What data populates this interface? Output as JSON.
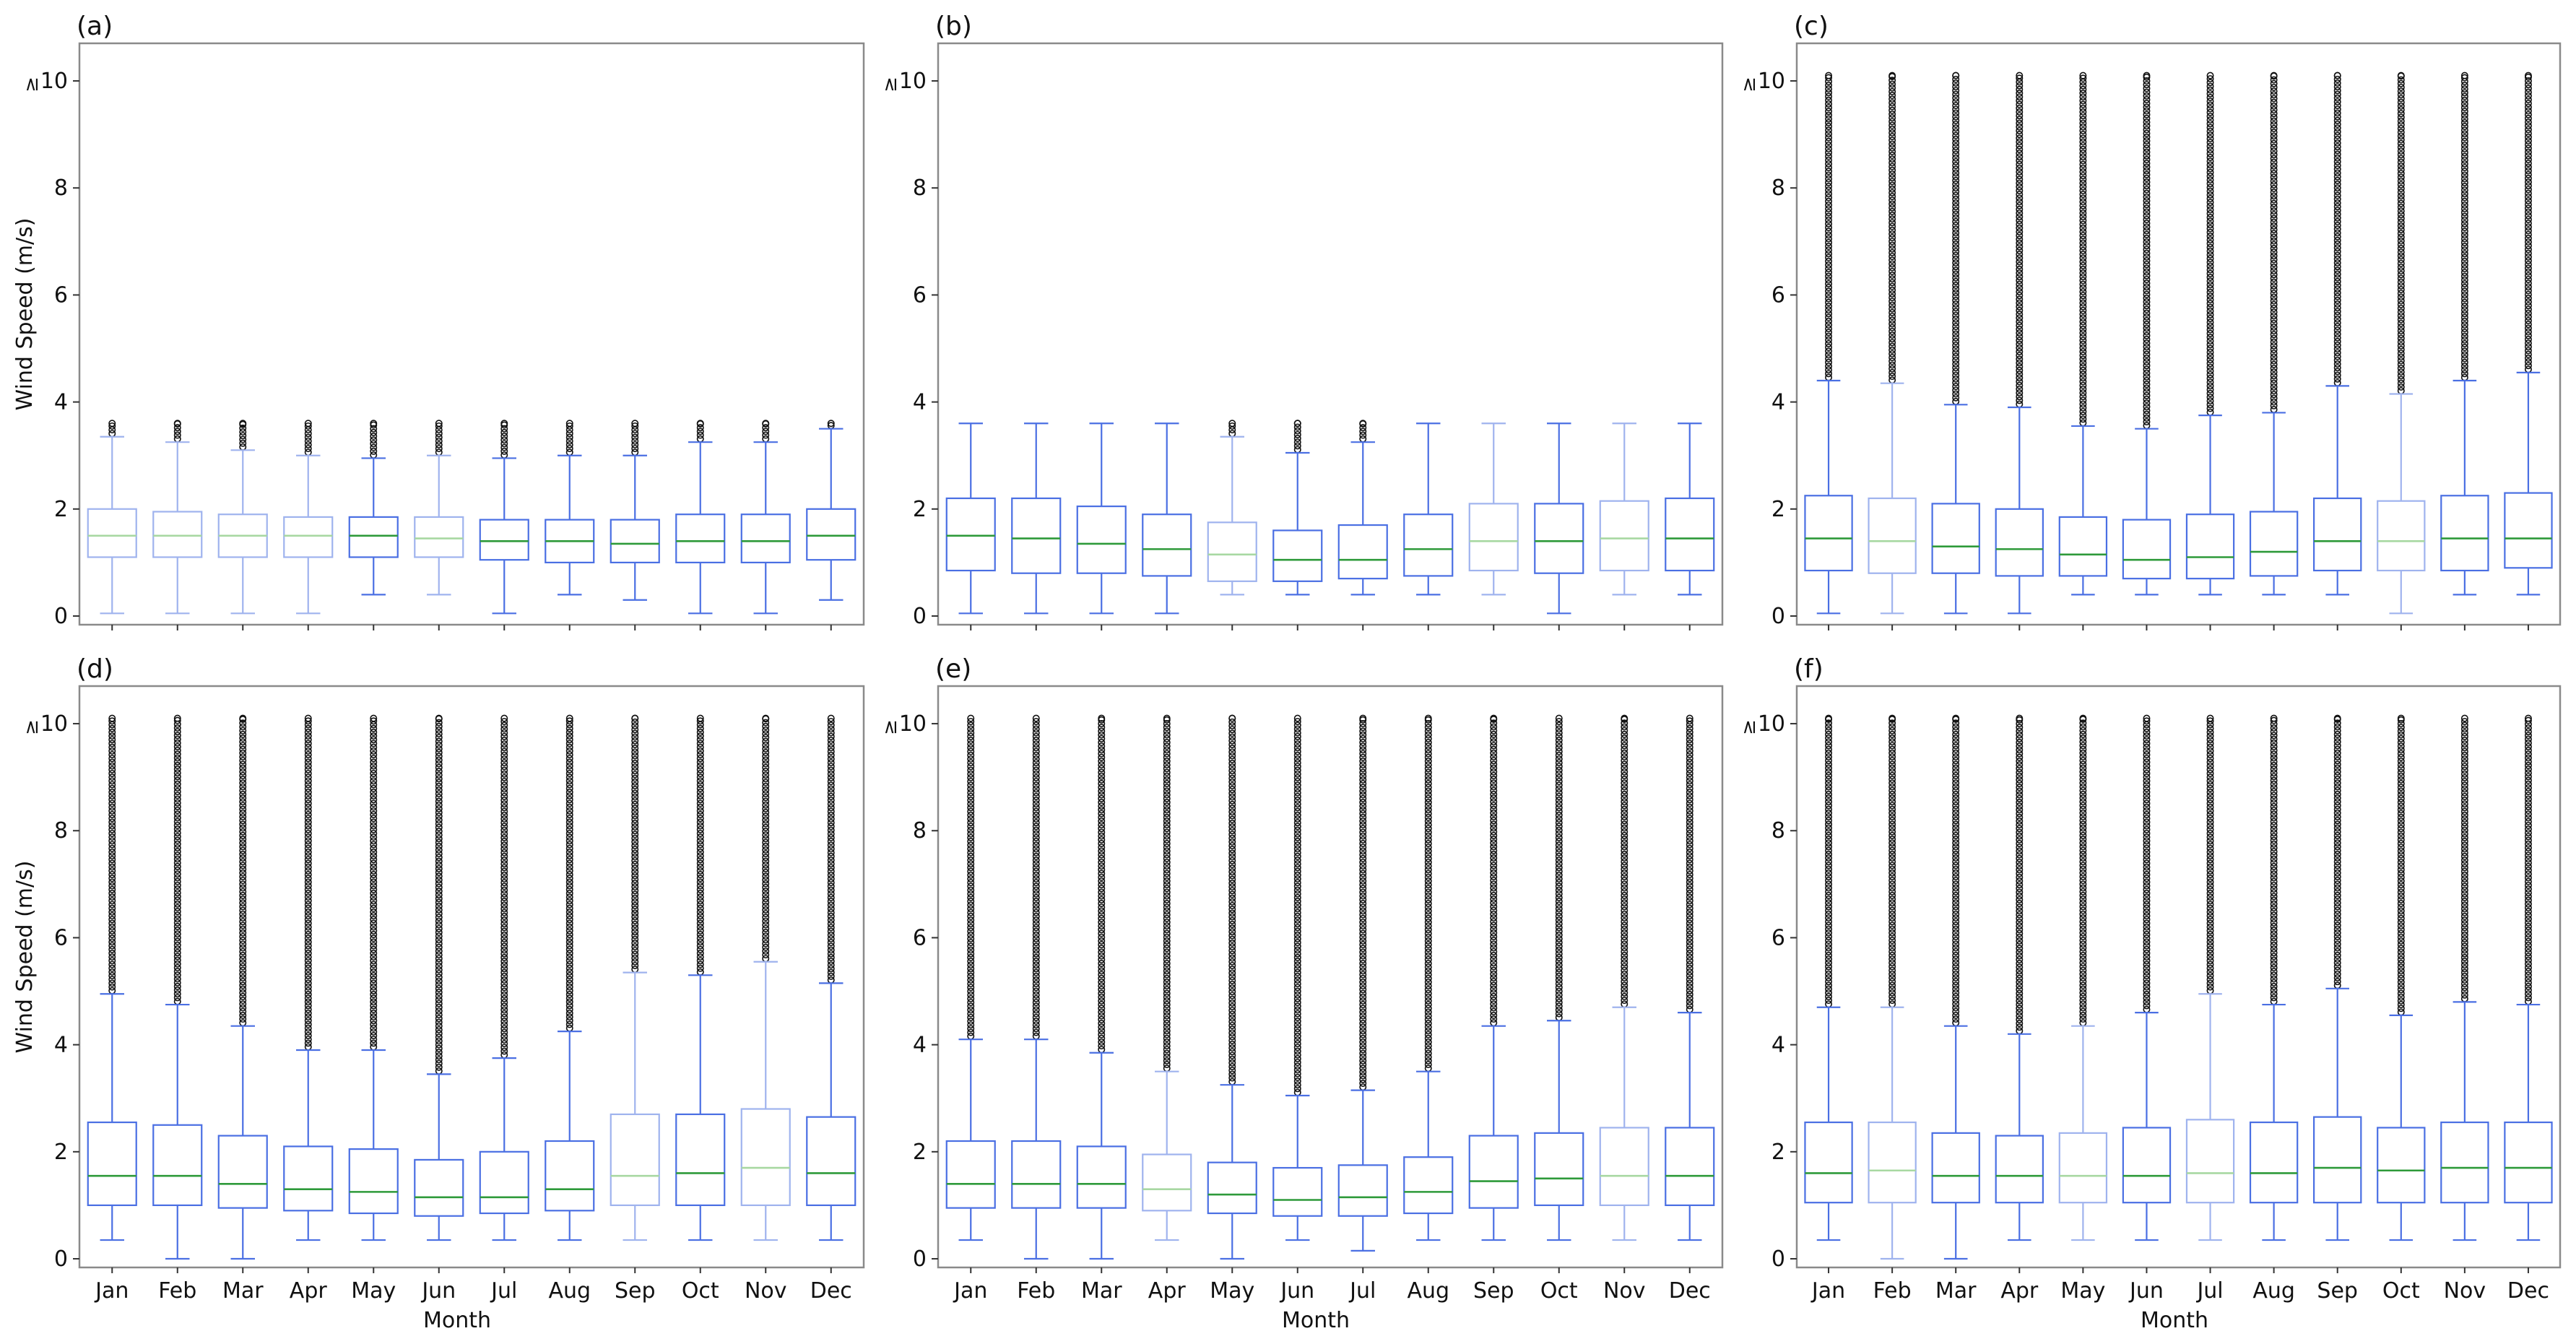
{
  "figure": {
    "ylabel": "Wind Speed (m/s)",
    "xlabel": "Month",
    "top_tick_prefix": "≥",
    "colors": {
      "box": "#4a6fe3",
      "box_light": "#9fb3ee",
      "median": "#2e9a3a",
      "median_light": "#a8d8a2",
      "flier": "#111111",
      "frame": "#8a8a8a"
    }
  },
  "chart_data": [
    {
      "type": "box",
      "panel_label": "(a)",
      "categories": [
        "Jan",
        "Feb",
        "Mar",
        "Apr",
        "May",
        "Jun",
        "Jul",
        "Aug",
        "Sep",
        "Oct",
        "Nov",
        "Dec"
      ],
      "ylim": [
        0,
        10.5
      ],
      "yticks": [
        0,
        2,
        4,
        6,
        8,
        10
      ],
      "ytick_labels": [
        "0",
        "2",
        "4",
        "6",
        "8",
        "10"
      ],
      "light": [
        true,
        true,
        true,
        true,
        false,
        true,
        false,
        false,
        false,
        false,
        false,
        false
      ],
      "boxes": [
        {
          "q1": 1.1,
          "median": 1.5,
          "q3": 2.0,
          "whislo": 0.05,
          "whishi": 3.35,
          "flier_max": 3.6
        },
        {
          "q1": 1.1,
          "median": 1.5,
          "q3": 1.95,
          "whislo": 0.05,
          "whishi": 3.25,
          "flier_max": 3.6
        },
        {
          "q1": 1.1,
          "median": 1.5,
          "q3": 1.9,
          "whislo": 0.05,
          "whishi": 3.1,
          "flier_max": 3.6
        },
        {
          "q1": 1.1,
          "median": 1.5,
          "q3": 1.85,
          "whislo": 0.05,
          "whishi": 3.0,
          "flier_max": 3.6
        },
        {
          "q1": 1.1,
          "median": 1.5,
          "q3": 1.85,
          "whislo": 0.4,
          "whishi": 2.95,
          "flier_max": 3.6
        },
        {
          "q1": 1.1,
          "median": 1.45,
          "q3": 1.85,
          "whislo": 0.4,
          "whishi": 3.0,
          "flier_max": 3.6
        },
        {
          "q1": 1.05,
          "median": 1.4,
          "q3": 1.8,
          "whislo": 0.05,
          "whishi": 2.95,
          "flier_max": 3.6
        },
        {
          "q1": 1.0,
          "median": 1.4,
          "q3": 1.8,
          "whislo": 0.4,
          "whishi": 3.0,
          "flier_max": 3.6
        },
        {
          "q1": 1.0,
          "median": 1.35,
          "q3": 1.8,
          "whislo": 0.3,
          "whishi": 3.0,
          "flier_max": 3.6
        },
        {
          "q1": 1.0,
          "median": 1.4,
          "q3": 1.9,
          "whislo": 0.05,
          "whishi": 3.25,
          "flier_max": 3.6
        },
        {
          "q1": 1.0,
          "median": 1.4,
          "q3": 1.9,
          "whislo": 0.05,
          "whishi": 3.25,
          "flier_max": 3.6
        },
        {
          "q1": 1.05,
          "median": 1.5,
          "q3": 2.0,
          "whislo": 0.3,
          "whishi": 3.5,
          "flier_max": 3.6
        }
      ]
    },
    {
      "type": "box",
      "panel_label": "(b)",
      "categories": [
        "Jan",
        "Feb",
        "Mar",
        "Apr",
        "May",
        "Jun",
        "Jul",
        "Aug",
        "Sep",
        "Oct",
        "Nov",
        "Dec"
      ],
      "ylim": [
        0,
        10.5
      ],
      "yticks": [
        0,
        2,
        4,
        6,
        8,
        10
      ],
      "ytick_labels": [
        "0",
        "2",
        "4",
        "6",
        "8",
        "10"
      ],
      "light": [
        false,
        false,
        false,
        false,
        true,
        false,
        false,
        false,
        true,
        false,
        true,
        false
      ],
      "boxes": [
        {
          "q1": 0.85,
          "median": 1.5,
          "q3": 2.2,
          "whislo": 0.05,
          "whishi": 3.6,
          "flier_max": null
        },
        {
          "q1": 0.8,
          "median": 1.45,
          "q3": 2.2,
          "whislo": 0.05,
          "whishi": 3.6,
          "flier_max": null
        },
        {
          "q1": 0.8,
          "median": 1.35,
          "q3": 2.05,
          "whislo": 0.05,
          "whishi": 3.6,
          "flier_max": null
        },
        {
          "q1": 0.75,
          "median": 1.25,
          "q3": 1.9,
          "whislo": 0.05,
          "whishi": 3.6,
          "flier_max": null
        },
        {
          "q1": 0.65,
          "median": 1.15,
          "q3": 1.75,
          "whislo": 0.4,
          "whishi": 3.35,
          "flier_max": 3.6
        },
        {
          "q1": 0.65,
          "median": 1.05,
          "q3": 1.6,
          "whislo": 0.4,
          "whishi": 3.05,
          "flier_max": 3.6
        },
        {
          "q1": 0.7,
          "median": 1.05,
          "q3": 1.7,
          "whislo": 0.4,
          "whishi": 3.25,
          "flier_max": 3.6
        },
        {
          "q1": 0.75,
          "median": 1.25,
          "q3": 1.9,
          "whislo": 0.4,
          "whishi": 3.6,
          "flier_max": null
        },
        {
          "q1": 0.85,
          "median": 1.4,
          "q3": 2.1,
          "whislo": 0.4,
          "whishi": 3.6,
          "flier_max": null
        },
        {
          "q1": 0.8,
          "median": 1.4,
          "q3": 2.1,
          "whislo": 0.05,
          "whishi": 3.6,
          "flier_max": null
        },
        {
          "q1": 0.85,
          "median": 1.45,
          "q3": 2.15,
          "whislo": 0.4,
          "whishi": 3.6,
          "flier_max": null
        },
        {
          "q1": 0.85,
          "median": 1.45,
          "q3": 2.2,
          "whislo": 0.4,
          "whishi": 3.6,
          "flier_max": null
        }
      ]
    },
    {
      "type": "box",
      "panel_label": "(c)",
      "categories": [
        "Jan",
        "Feb",
        "Mar",
        "Apr",
        "May",
        "Jun",
        "Jul",
        "Aug",
        "Sep",
        "Oct",
        "Nov",
        "Dec"
      ],
      "ylim": [
        0,
        10.5
      ],
      "yticks": [
        0,
        2,
        4,
        6,
        8,
        10
      ],
      "ytick_labels": [
        "0",
        "2",
        "4",
        "6",
        "8",
        "10"
      ],
      "light": [
        false,
        true,
        false,
        false,
        false,
        false,
        false,
        false,
        false,
        true,
        false,
        false
      ],
      "boxes": [
        {
          "q1": 0.85,
          "median": 1.45,
          "q3": 2.25,
          "whislo": 0.05,
          "whishi": 4.4,
          "flier_max": 10.1
        },
        {
          "q1": 0.8,
          "median": 1.4,
          "q3": 2.2,
          "whislo": 0.05,
          "whishi": 4.35,
          "flier_max": 10.1
        },
        {
          "q1": 0.8,
          "median": 1.3,
          "q3": 2.1,
          "whislo": 0.05,
          "whishi": 3.95,
          "flier_max": 10.1
        },
        {
          "q1": 0.75,
          "median": 1.25,
          "q3": 2.0,
          "whislo": 0.05,
          "whishi": 3.9,
          "flier_max": 10.1
        },
        {
          "q1": 0.75,
          "median": 1.15,
          "q3": 1.85,
          "whislo": 0.4,
          "whishi": 3.55,
          "flier_max": 10.1
        },
        {
          "q1": 0.7,
          "median": 1.05,
          "q3": 1.8,
          "whislo": 0.4,
          "whishi": 3.5,
          "flier_max": 10.1
        },
        {
          "q1": 0.7,
          "median": 1.1,
          "q3": 1.9,
          "whislo": 0.4,
          "whishi": 3.75,
          "flier_max": 10.1
        },
        {
          "q1": 0.75,
          "median": 1.2,
          "q3": 1.95,
          "whislo": 0.4,
          "whishi": 3.8,
          "flier_max": 10.1
        },
        {
          "q1": 0.85,
          "median": 1.4,
          "q3": 2.2,
          "whislo": 0.4,
          "whishi": 4.3,
          "flier_max": 10.1
        },
        {
          "q1": 0.85,
          "median": 1.4,
          "q3": 2.15,
          "whislo": 0.05,
          "whishi": 4.15,
          "flier_max": 10.1
        },
        {
          "q1": 0.85,
          "median": 1.45,
          "q3": 2.25,
          "whislo": 0.4,
          "whishi": 4.4,
          "flier_max": 10.1
        },
        {
          "q1": 0.9,
          "median": 1.45,
          "q3": 2.3,
          "whislo": 0.4,
          "whishi": 4.55,
          "flier_max": 10.1
        }
      ]
    },
    {
      "type": "box",
      "panel_label": "(d)",
      "categories": [
        "Jan",
        "Feb",
        "Mar",
        "Apr",
        "May",
        "Jun",
        "Jul",
        "Aug",
        "Sep",
        "Oct",
        "Nov",
        "Dec"
      ],
      "ylim": [
        0,
        10.5
      ],
      "yticks": [
        0,
        2,
        4,
        6,
        8,
        10
      ],
      "ytick_labels": [
        "0",
        "2",
        "4",
        "6",
        "8",
        "10"
      ],
      "light": [
        false,
        false,
        false,
        false,
        false,
        false,
        false,
        false,
        true,
        false,
        true,
        false
      ],
      "boxes": [
        {
          "q1": 1.0,
          "median": 1.55,
          "q3": 2.55,
          "whislo": 0.35,
          "whishi": 4.95,
          "flier_max": 10.1
        },
        {
          "q1": 1.0,
          "median": 1.55,
          "q3": 2.5,
          "whislo": 0.0,
          "whishi": 4.75,
          "flier_max": 10.1
        },
        {
          "q1": 0.95,
          "median": 1.4,
          "q3": 2.3,
          "whislo": 0.0,
          "whishi": 4.35,
          "flier_max": 10.1
        },
        {
          "q1": 0.9,
          "median": 1.3,
          "q3": 2.1,
          "whislo": 0.35,
          "whishi": 3.9,
          "flier_max": 10.1
        },
        {
          "q1": 0.85,
          "median": 1.25,
          "q3": 2.05,
          "whislo": 0.35,
          "whishi": 3.9,
          "flier_max": 10.1
        },
        {
          "q1": 0.8,
          "median": 1.15,
          "q3": 1.85,
          "whislo": 0.35,
          "whishi": 3.45,
          "flier_max": 10.1
        },
        {
          "q1": 0.85,
          "median": 1.15,
          "q3": 2.0,
          "whislo": 0.35,
          "whishi": 3.75,
          "flier_max": 10.1
        },
        {
          "q1": 0.9,
          "median": 1.3,
          "q3": 2.2,
          "whislo": 0.35,
          "whishi": 4.25,
          "flier_max": 10.1
        },
        {
          "q1": 1.0,
          "median": 1.55,
          "q3": 2.7,
          "whislo": 0.35,
          "whishi": 5.35,
          "flier_max": 10.1
        },
        {
          "q1": 1.0,
          "median": 1.6,
          "q3": 2.7,
          "whislo": 0.35,
          "whishi": 5.3,
          "flier_max": 10.1
        },
        {
          "q1": 1.0,
          "median": 1.7,
          "q3": 2.8,
          "whislo": 0.35,
          "whishi": 5.55,
          "flier_max": 10.1
        },
        {
          "q1": 1.0,
          "median": 1.6,
          "q3": 2.65,
          "whislo": 0.35,
          "whishi": 5.15,
          "flier_max": 10.1
        }
      ]
    },
    {
      "type": "box",
      "panel_label": "(e)",
      "categories": [
        "Jan",
        "Feb",
        "Mar",
        "Apr",
        "May",
        "Jun",
        "Jul",
        "Aug",
        "Sep",
        "Oct",
        "Nov",
        "Dec"
      ],
      "ylim": [
        0,
        10.5
      ],
      "yticks": [
        0,
        2,
        4,
        6,
        8,
        10
      ],
      "ytick_labels": [
        "0",
        "2",
        "4",
        "6",
        "8",
        "10"
      ],
      "light": [
        false,
        false,
        false,
        true,
        false,
        false,
        false,
        false,
        false,
        false,
        true,
        false
      ],
      "boxes": [
        {
          "q1": 0.95,
          "median": 1.4,
          "q3": 2.2,
          "whislo": 0.35,
          "whishi": 4.1,
          "flier_max": 10.1
        },
        {
          "q1": 0.95,
          "median": 1.4,
          "q3": 2.2,
          "whislo": 0.0,
          "whishi": 4.1,
          "flier_max": 10.1
        },
        {
          "q1": 0.95,
          "median": 1.4,
          "q3": 2.1,
          "whislo": 0.0,
          "whishi": 3.85,
          "flier_max": 10.1
        },
        {
          "q1": 0.9,
          "median": 1.3,
          "q3": 1.95,
          "whislo": 0.35,
          "whishi": 3.5,
          "flier_max": 10.1
        },
        {
          "q1": 0.85,
          "median": 1.2,
          "q3": 1.8,
          "whislo": 0.0,
          "whishi": 3.25,
          "flier_max": 10.1
        },
        {
          "q1": 0.8,
          "median": 1.1,
          "q3": 1.7,
          "whislo": 0.35,
          "whishi": 3.05,
          "flier_max": 10.1
        },
        {
          "q1": 0.8,
          "median": 1.15,
          "q3": 1.75,
          "whislo": 0.15,
          "whishi": 3.15,
          "flier_max": 10.1
        },
        {
          "q1": 0.85,
          "median": 1.25,
          "q3": 1.9,
          "whislo": 0.35,
          "whishi": 3.5,
          "flier_max": 10.1
        },
        {
          "q1": 0.95,
          "median": 1.45,
          "q3": 2.3,
          "whislo": 0.35,
          "whishi": 4.35,
          "flier_max": 10.1
        },
        {
          "q1": 1.0,
          "median": 1.5,
          "q3": 2.35,
          "whislo": 0.35,
          "whishi": 4.45,
          "flier_max": 10.1
        },
        {
          "q1": 1.0,
          "median": 1.55,
          "q3": 2.45,
          "whislo": 0.35,
          "whishi": 4.7,
          "flier_max": 10.1
        },
        {
          "q1": 1.0,
          "median": 1.55,
          "q3": 2.45,
          "whislo": 0.35,
          "whishi": 4.6,
          "flier_max": 10.1
        }
      ]
    },
    {
      "type": "box",
      "panel_label": "(f)",
      "categories": [
        "Jan",
        "Feb",
        "Mar",
        "Apr",
        "May",
        "Jun",
        "Jul",
        "Aug",
        "Sep",
        "Oct",
        "Nov",
        "Dec"
      ],
      "ylim": [
        0,
        10.5
      ],
      "yticks": [
        0,
        2,
        4,
        6,
        8,
        10
      ],
      "ytick_labels": [
        "0",
        "2",
        "4",
        "6",
        "8",
        "10"
      ],
      "light": [
        false,
        true,
        false,
        false,
        true,
        false,
        true,
        false,
        false,
        false,
        false,
        false
      ],
      "boxes": [
        {
          "q1": 1.05,
          "median": 1.6,
          "q3": 2.55,
          "whislo": 0.35,
          "whishi": 4.7,
          "flier_max": 10.1
        },
        {
          "q1": 1.05,
          "median": 1.65,
          "q3": 2.55,
          "whislo": 0.0,
          "whishi": 4.7,
          "flier_max": 10.1
        },
        {
          "q1": 1.05,
          "median": 1.55,
          "q3": 2.35,
          "whislo": 0.0,
          "whishi": 4.35,
          "flier_max": 10.1
        },
        {
          "q1": 1.05,
          "median": 1.55,
          "q3": 2.3,
          "whislo": 0.35,
          "whishi": 4.2,
          "flier_max": 10.1
        },
        {
          "q1": 1.05,
          "median": 1.55,
          "q3": 2.35,
          "whislo": 0.35,
          "whishi": 4.35,
          "flier_max": 10.1
        },
        {
          "q1": 1.05,
          "median": 1.55,
          "q3": 2.45,
          "whislo": 0.35,
          "whishi": 4.6,
          "flier_max": 10.1
        },
        {
          "q1": 1.05,
          "median": 1.6,
          "q3": 2.6,
          "whislo": 0.35,
          "whishi": 4.95,
          "flier_max": 10.1
        },
        {
          "q1": 1.05,
          "median": 1.6,
          "q3": 2.55,
          "whislo": 0.35,
          "whishi": 4.75,
          "flier_max": 10.1
        },
        {
          "q1": 1.05,
          "median": 1.7,
          "q3": 2.65,
          "whislo": 0.35,
          "whishi": 5.05,
          "flier_max": 10.1
        },
        {
          "q1": 1.05,
          "median": 1.65,
          "q3": 2.45,
          "whislo": 0.35,
          "whishi": 4.55,
          "flier_max": 10.1
        },
        {
          "q1": 1.05,
          "median": 1.7,
          "q3": 2.55,
          "whislo": 0.35,
          "whishi": 4.8,
          "flier_max": 10.1
        },
        {
          "q1": 1.05,
          "median": 1.7,
          "q3": 2.55,
          "whislo": 0.35,
          "whishi": 4.75,
          "flier_max": 10.1
        }
      ]
    }
  ]
}
